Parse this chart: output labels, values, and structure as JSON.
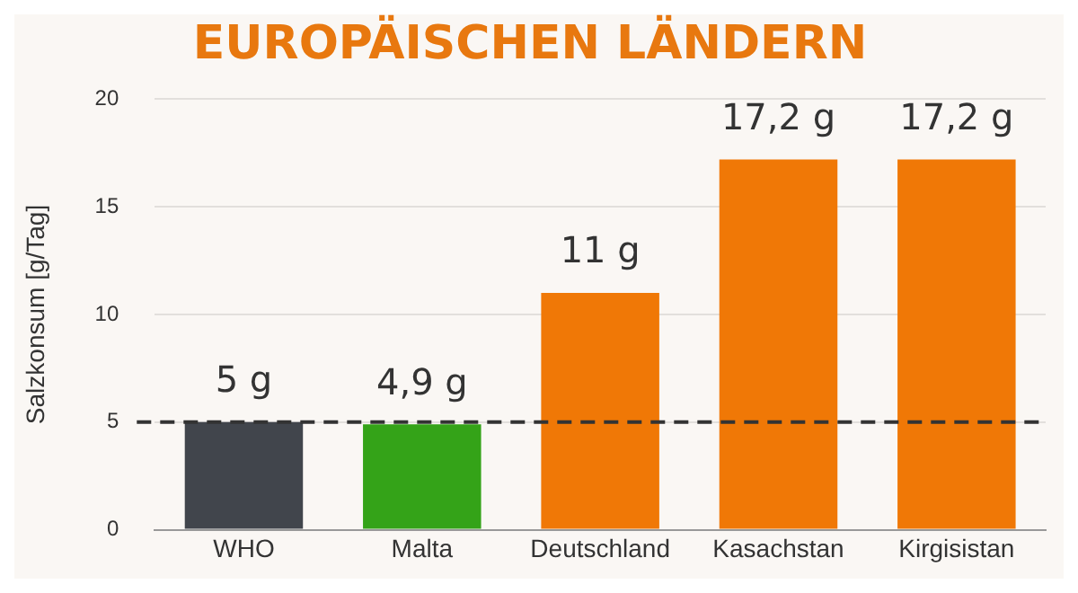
{
  "chart_data": {
    "type": "bar",
    "title": "EUROPÄISCHEN LÄNDERN",
    "ylabel": "Salzkonsum [g/Tag]",
    "categories": [
      "WHO",
      "Malta",
      "Deutschland",
      "Kasachstan",
      "Kirgisistan"
    ],
    "values": [
      5,
      4.9,
      11,
      17.2,
      17.2
    ],
    "colors": [
      "#41454c",
      "#34a318",
      "#f07806",
      "#f07806",
      "#f07806"
    ],
    "value_labels": [
      "5 g",
      "4,9 g",
      "11 g",
      "17,2 g",
      "17,2 g"
    ],
    "ylim": [
      0,
      20
    ],
    "yticks": [
      0,
      5,
      10,
      15,
      20
    ],
    "grid": "y",
    "legend": false,
    "ref_lines": [
      {
        "axis": "y",
        "value": 5,
        "color": "#333333",
        "line_style": "dashed"
      }
    ]
  }
}
